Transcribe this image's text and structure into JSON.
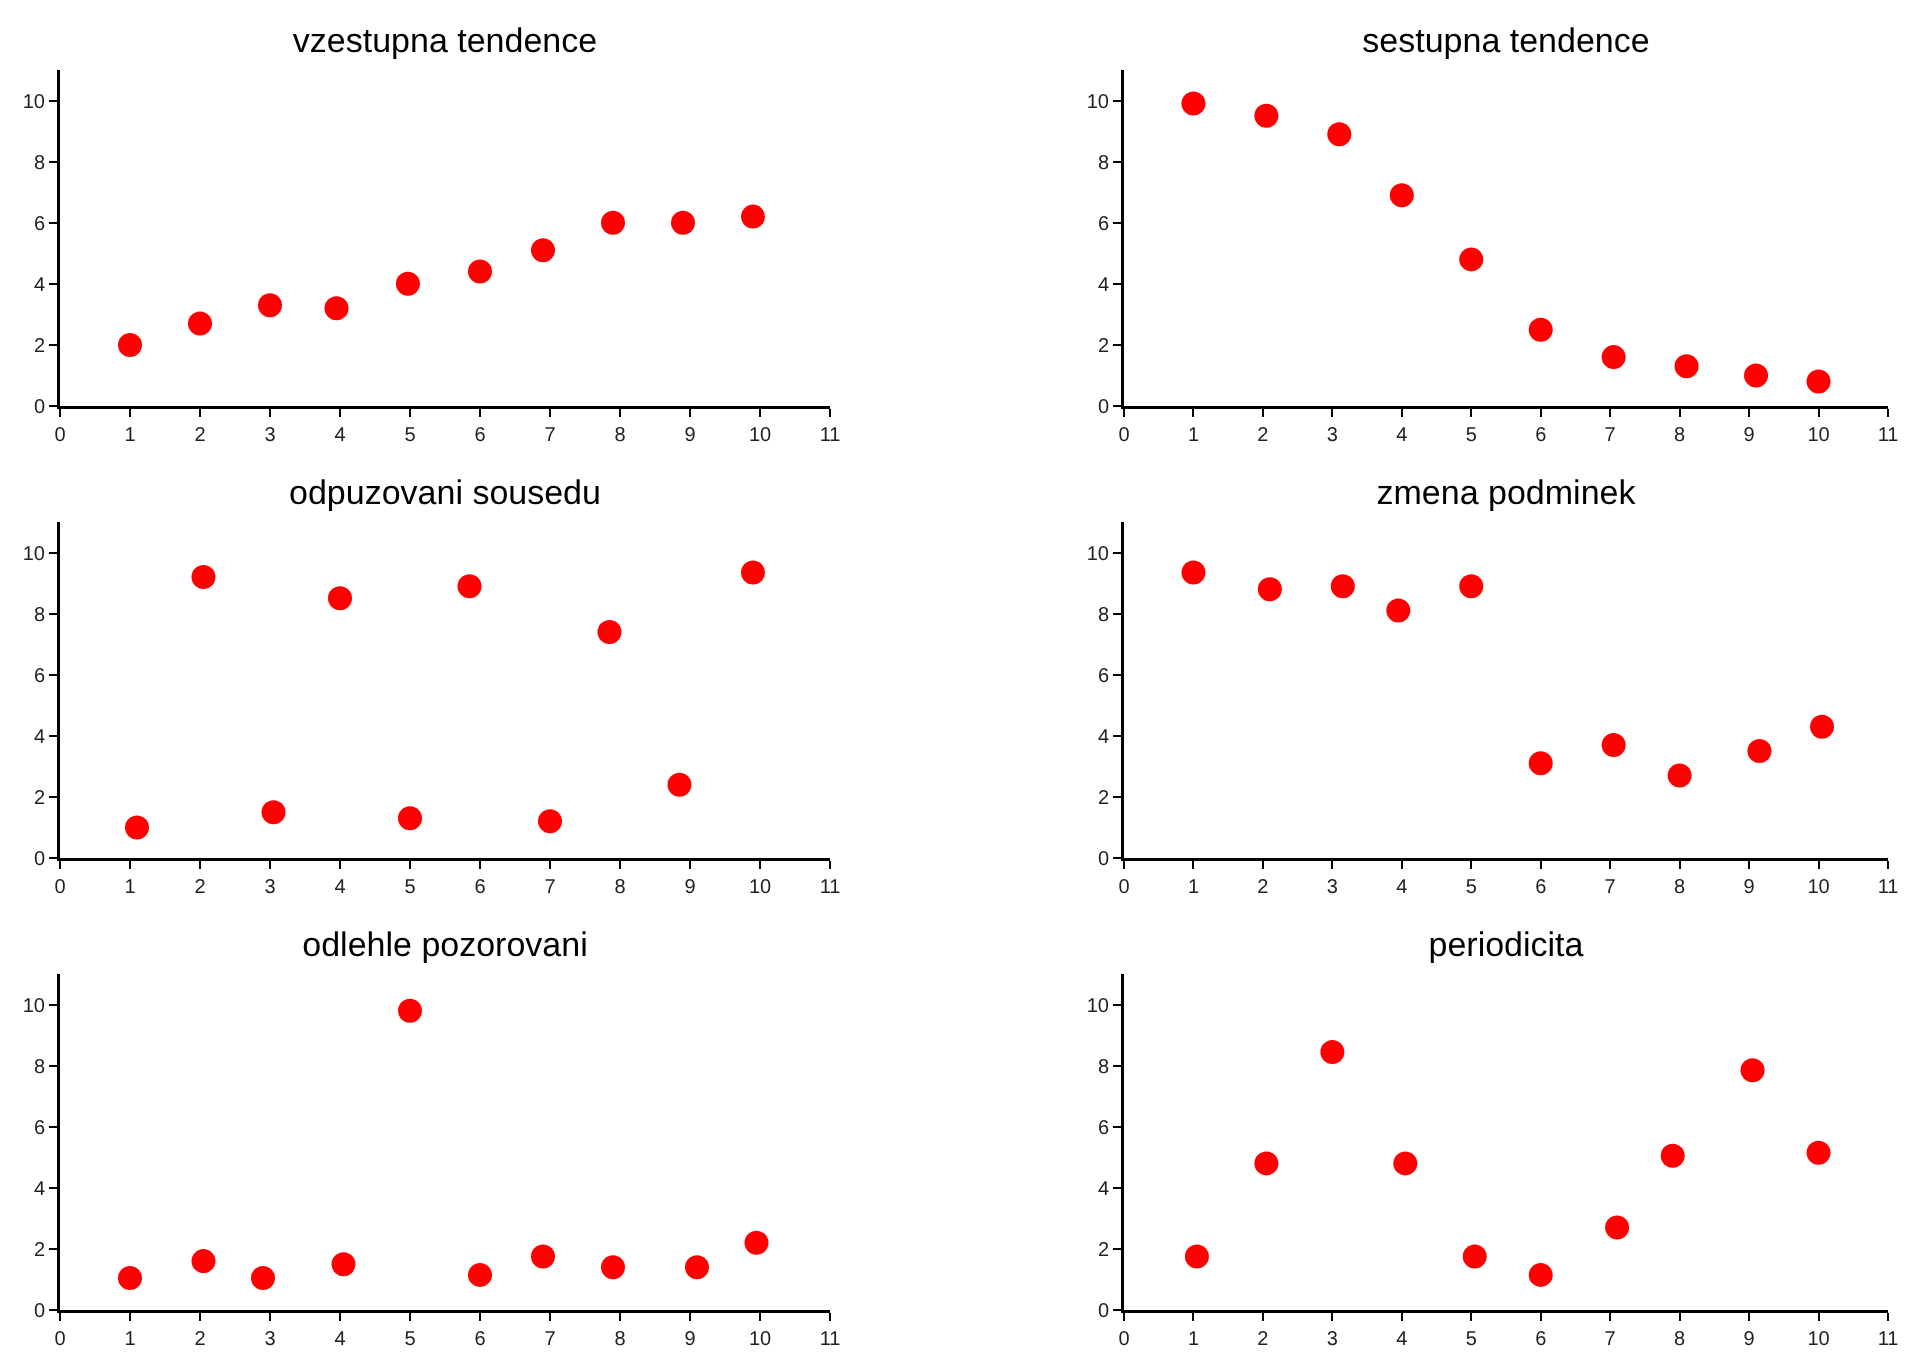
{
  "chart_data": [
    {
      "type": "scatter",
      "title": "vzestupna tendence",
      "x": [
        1.0,
        2.0,
        3.0,
        3.95,
        4.97,
        6.0,
        6.9,
        7.9,
        8.9,
        9.9
      ],
      "values": [
        2.0,
        2.7,
        3.3,
        3.2,
        4.0,
        4.4,
        5.1,
        6.0,
        6.0,
        6.2
      ],
      "color": "#ff0000",
      "marker": "circle",
      "xlim": [
        0,
        11
      ],
      "ylim": [
        0,
        11
      ],
      "xticks": [
        0,
        1,
        2,
        3,
        4,
        5,
        6,
        7,
        8,
        9,
        10,
        11
      ],
      "yticks": [
        0,
        2,
        4,
        6,
        8,
        10
      ]
    },
    {
      "type": "scatter",
      "title": "sestupna tendence",
      "x": [
        1.0,
        2.05,
        3.1,
        4.0,
        5.0,
        6.0,
        7.05,
        8.1,
        9.1,
        10.0
      ],
      "values": [
        9.9,
        9.5,
        8.9,
        6.9,
        4.8,
        2.5,
        1.6,
        1.3,
        1.0,
        0.8
      ],
      "color": "#ff0000",
      "marker": "circle",
      "xlim": [
        0,
        11
      ],
      "ylim": [
        0,
        11
      ],
      "xticks": [
        0,
        1,
        2,
        3,
        4,
        5,
        6,
        7,
        8,
        9,
        10,
        11
      ],
      "yticks": [
        0,
        2,
        4,
        6,
        8,
        10
      ]
    },
    {
      "type": "scatter",
      "title": "odpuzovani sousedu",
      "x": [
        1.1,
        2.05,
        3.05,
        4.0,
        5.0,
        5.85,
        7.0,
        7.85,
        8.85,
        9.9
      ],
      "values": [
        1.0,
        9.2,
        1.5,
        8.5,
        1.3,
        8.9,
        1.2,
        7.4,
        2.4,
        9.35
      ],
      "color": "#ff0000",
      "marker": "circle",
      "xlim": [
        0,
        11
      ],
      "ylim": [
        0,
        11
      ],
      "xticks": [
        0,
        1,
        2,
        3,
        4,
        5,
        6,
        7,
        8,
        9,
        10,
        11
      ],
      "yticks": [
        0,
        2,
        4,
        6,
        8,
        10
      ]
    },
    {
      "type": "scatter",
      "title": "zmena podminek",
      "x": [
        1.0,
        2.1,
        3.15,
        3.95,
        5.0,
        6.0,
        7.05,
        8.0,
        9.15,
        10.05
      ],
      "values": [
        9.35,
        8.8,
        8.9,
        8.1,
        8.9,
        3.1,
        3.7,
        2.7,
        3.5,
        4.3
      ],
      "color": "#ff0000",
      "marker": "circle",
      "xlim": [
        0,
        11
      ],
      "ylim": [
        0,
        11
      ],
      "xticks": [
        0,
        1,
        2,
        3,
        4,
        5,
        6,
        7,
        8,
        9,
        10,
        11
      ],
      "yticks": [
        0,
        2,
        4,
        6,
        8,
        10
      ]
    },
    {
      "type": "scatter",
      "title": "odlehle pozorovani",
      "x": [
        1.0,
        2.05,
        2.9,
        4.05,
        5.0,
        6.0,
        6.9,
        7.9,
        9.1,
        9.95
      ],
      "values": [
        1.05,
        1.6,
        1.05,
        1.5,
        9.8,
        1.15,
        1.75,
        1.4,
        1.4,
        2.2
      ],
      "color": "#ff0000",
      "marker": "circle",
      "xlim": [
        0,
        11
      ],
      "ylim": [
        0,
        11
      ],
      "xticks": [
        0,
        1,
        2,
        3,
        4,
        5,
        6,
        7,
        8,
        9,
        10,
        11
      ],
      "yticks": [
        0,
        2,
        4,
        6,
        8,
        10
      ]
    },
    {
      "type": "scatter",
      "title": "periodicita",
      "x": [
        1.05,
        2.05,
        3.0,
        4.05,
        5.05,
        6.0,
        7.1,
        7.9,
        9.05,
        10.0
      ],
      "values": [
        1.75,
        4.8,
        8.45,
        4.8,
        1.75,
        1.15,
        2.7,
        5.05,
        7.85,
        5.15
      ],
      "color": "#ff0000",
      "marker": "circle",
      "xlim": [
        0,
        11
      ],
      "ylim": [
        0,
        11
      ],
      "xticks": [
        0,
        1,
        2,
        3,
        4,
        5,
        6,
        7,
        8,
        9,
        10,
        11
      ],
      "yticks": [
        0,
        2,
        4,
        6,
        8,
        10
      ]
    }
  ]
}
